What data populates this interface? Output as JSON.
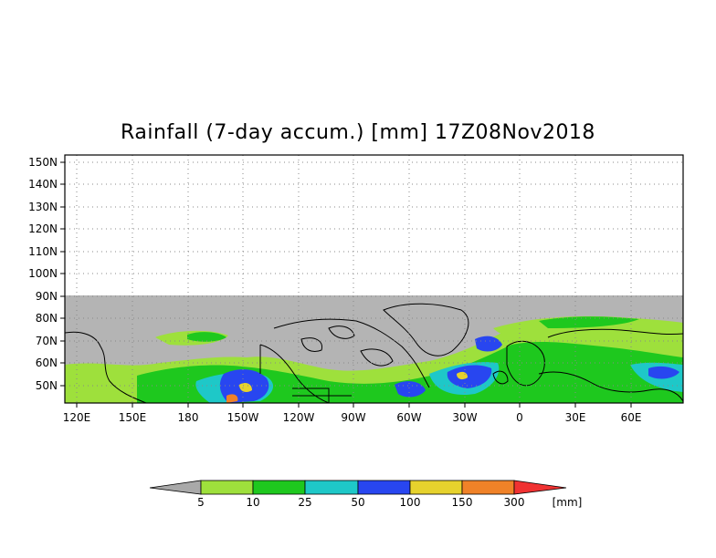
{
  "title": "Rainfall (7-day accum.) [mm] 17Z08Nov2018",
  "lat_labels": [
    "150N",
    "140N",
    "130N",
    "120N",
    "110N",
    "100N",
    "90N",
    "80N",
    "70N",
    "60N",
    "50N"
  ],
  "lon_labels": [
    "120E",
    "150E",
    "180",
    "150W",
    "120W",
    "90W",
    "60W",
    "30W",
    "0",
    "30E",
    "60E"
  ],
  "map": {
    "lon_range": [
      110,
      90
    ],
    "lat_range": [
      42,
      153
    ],
    "no_data_color": "#b4b4b4",
    "grid": "dotted"
  },
  "colorbar": {
    "unit": "[mm]",
    "labels": [
      "5",
      "10",
      "25",
      "50",
      "100",
      "150",
      "300"
    ],
    "colors": [
      "#a9a9a9",
      "#9ee03c",
      "#1ec81e",
      "#1ec8c8",
      "#2846f0",
      "#e6d22d",
      "#f08228",
      "#f03232"
    ]
  }
}
